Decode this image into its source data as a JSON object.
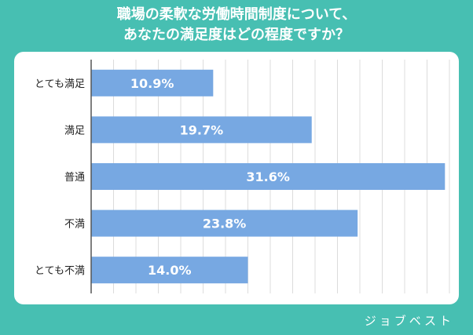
{
  "title_line1": "職場の柔軟な労働時間制度について、",
  "title_line2": "あなたの満足度はどの程度ですか？",
  "brand": "ジョブベスト",
  "colors": {
    "background": "#47bfb2",
    "bar": "#77a8e2",
    "grid": "#dcdcdc",
    "axis": "#555555",
    "label": "#222222",
    "value_text": "#ffffff"
  },
  "chart_data": {
    "type": "bar",
    "orientation": "horizontal",
    "categories": [
      "とても満足",
      "満足",
      "普通",
      "不満",
      "とても不満"
    ],
    "values": [
      10.9,
      19.7,
      31.6,
      23.8,
      14.0
    ],
    "value_labels": [
      "10.9%",
      "19.7%",
      "31.6%",
      "23.8%",
      "14.0%"
    ],
    "xlim": [
      0,
      32
    ],
    "grid": true,
    "legend": "none"
  }
}
